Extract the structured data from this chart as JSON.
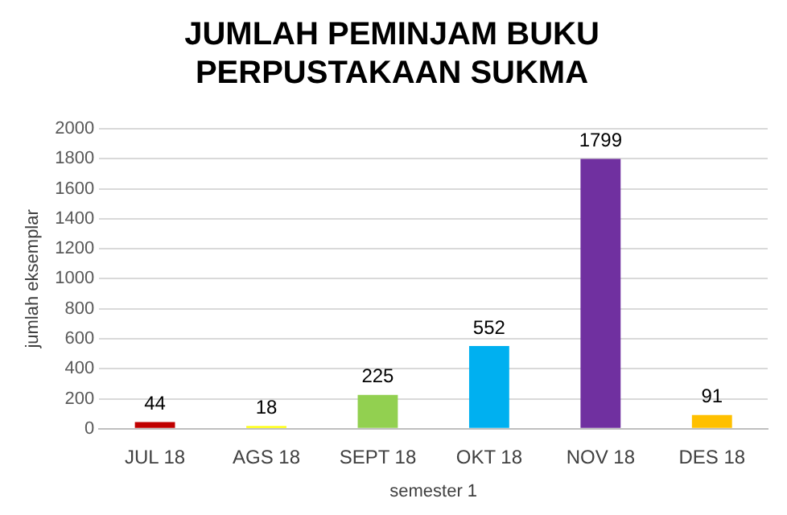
{
  "chart_data": {
    "type": "bar",
    "title": "JUMLAH PEMINJAM BUKU\nPERPUSTAKAAN SUKMA",
    "xlabel": "semester 1",
    "ylabel": "jumlah eksemplar",
    "categories": [
      "JUL 18",
      "AGS 18",
      "SEPT 18",
      "OKT 18",
      "NOV 18",
      "DES 18"
    ],
    "values": [
      44,
      18,
      225,
      552,
      1799,
      91
    ],
    "colors": [
      "#c00000",
      "#ffff00",
      "#92d050",
      "#00b0f0",
      "#7030a0",
      "#ffc000"
    ],
    "ylim": [
      0,
      2000
    ],
    "yticks": [
      0,
      200,
      400,
      600,
      800,
      1000,
      1200,
      1400,
      1600,
      1800,
      2000
    ],
    "grid": "y",
    "data_labels": true,
    "legend": false
  }
}
